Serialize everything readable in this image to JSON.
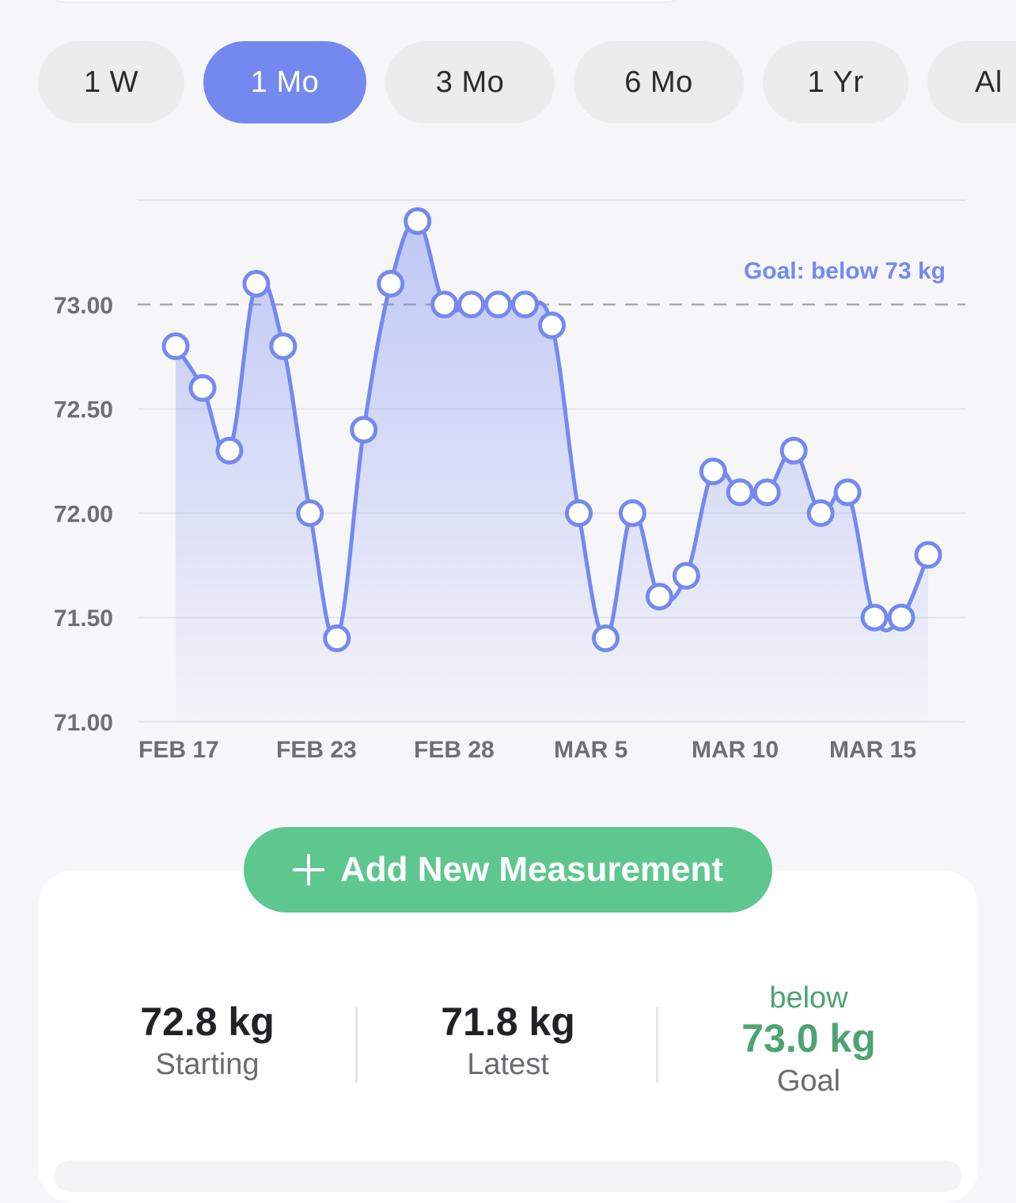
{
  "range_tabs": [
    {
      "label": "1 W",
      "active": false
    },
    {
      "label": "1 Mo",
      "active": true
    },
    {
      "label": "3 Mo",
      "active": false
    },
    {
      "label": "6 Mo",
      "active": false
    },
    {
      "label": "1 Yr",
      "active": false
    },
    {
      "label": "Al",
      "active": false
    }
  ],
  "colors": {
    "accent": "#7489f0",
    "goal_green": "#4ea372",
    "add_button": "#5ec790"
  },
  "chart_data": {
    "type": "area",
    "y_tick_labels": [
      "73.00",
      "72.50",
      "72.00",
      "71.50",
      "71.00"
    ],
    "y_ticks": [
      73.0,
      72.5,
      72.0,
      71.5,
      71.0
    ],
    "ylim": [
      71.0,
      73.5
    ],
    "x_tick_labels": [
      "FEB 17",
      "FEB 23",
      "FEB 28",
      "MAR 5",
      "MAR 10",
      "MAR 15"
    ],
    "goal_line": {
      "value": 73.0,
      "label": "Goal: below 73 kg"
    },
    "grid": true,
    "series": [
      {
        "values": [
          72.8,
          72.6,
          72.3,
          73.1,
          72.8,
          72.0,
          71.4,
          72.4,
          73.1,
          73.4,
          73.0,
          73.0,
          73.0,
          73.0,
          72.9,
          72.0,
          71.4,
          72.0,
          71.6,
          71.7,
          72.2,
          72.1,
          72.1,
          72.3,
          72.0,
          72.1,
          71.5,
          71.5,
          71.8
        ]
      }
    ]
  },
  "add_button": {
    "label": "Add New Measurement"
  },
  "stats": {
    "starting": {
      "value": "72.8 kg",
      "label": "Starting"
    },
    "latest": {
      "value": "71.8 kg",
      "label": "Latest"
    },
    "goal": {
      "prefix": "below",
      "value": "73.0 kg",
      "label": "Goal"
    }
  }
}
